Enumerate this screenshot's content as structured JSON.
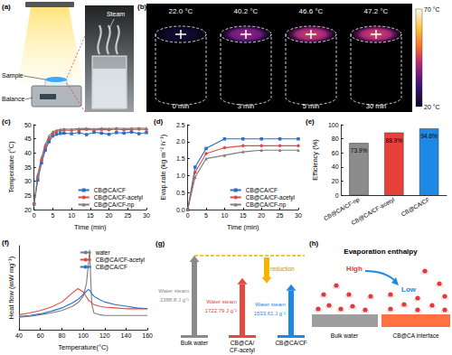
{
  "chart_data": [
    {
      "panel": "(c)",
      "type": "line",
      "x_label": "Time (min)",
      "y_label": "Temperature (°C)",
      "x": [
        0,
        1,
        2,
        3,
        4,
        5,
        6,
        7,
        8,
        10,
        12,
        14,
        16,
        18,
        20,
        22,
        24,
        26,
        28,
        30
      ],
      "series": [
        {
          "name": "CB@CA/CF",
          "color": "#2a6fc9",
          "marker": "rect",
          "values": [
            22.0,
            30.5,
            36.5,
            41.0,
            44.0,
            46.0,
            46.6,
            46.9,
            47.0,
            46.8,
            47.2,
            46.5,
            47.3,
            47.0,
            46.6,
            47.2,
            47.0,
            47.4,
            46.8,
            47.2
          ]
        },
        {
          "name": "CB@CA/CF-acetyl",
          "color": "#e5483d",
          "marker": "circle",
          "values": [
            22.0,
            31.5,
            37.5,
            42.0,
            45.0,
            46.8,
            47.6,
            47.9,
            48.1,
            48.0,
            48.2,
            48.3,
            48.1,
            48.3,
            48.2,
            48.4,
            48.2,
            48.3,
            48.4,
            48.3
          ]
        },
        {
          "name": "CB@CA/CF-np",
          "color": "#7d7d7d",
          "marker": "triangle",
          "values": [
            22.0,
            32.5,
            38.5,
            43.0,
            46.0,
            47.5,
            48.0,
            48.3,
            48.5,
            48.4,
            48.6,
            48.7,
            48.5,
            48.7,
            48.6,
            48.8,
            48.6,
            48.7,
            48.8,
            48.7
          ]
        }
      ],
      "xlim": [
        0,
        30
      ],
      "xticks": [
        0,
        5,
        10,
        15,
        20,
        25,
        30
      ],
      "ylim": [
        20,
        50
      ],
      "yticks": [
        20,
        25,
        30,
        35,
        40,
        45,
        50
      ],
      "grid": false,
      "legend": "lower right"
    },
    {
      "panel": "(d)",
      "type": "line",
      "x_label": "Time (min)",
      "y_label": "Evap.rate (kg m⁻² h⁻¹)",
      "x": [
        0,
        2,
        5,
        10,
        15,
        20,
        25,
        30
      ],
      "series": [
        {
          "name": "CB@CA/CF",
          "color": "#2a6fc9",
          "marker": "rect",
          "values": [
            0,
            1.25,
            1.8,
            2.08,
            2.08,
            2.08,
            2.08,
            2.08
          ]
        },
        {
          "name": "CB@CA/CF-acetyl",
          "color": "#e5483d",
          "marker": "circle",
          "values": [
            0,
            1.1,
            1.65,
            1.82,
            1.88,
            1.88,
            1.88,
            1.88
          ]
        },
        {
          "name": "CB@CA/CF-np",
          "color": "#7d7d7d",
          "marker": "triangle",
          "values": [
            0,
            0.95,
            1.5,
            1.6,
            1.7,
            1.75,
            1.75,
            1.75
          ]
        }
      ],
      "xlim": [
        0,
        30
      ],
      "xticks": [
        0,
        5,
        10,
        15,
        20,
        25,
        30
      ],
      "ylim": [
        0,
        2.5
      ],
      "yticks": [
        {
          "value": 0,
          "label": "0.0"
        },
        0.5,
        {
          "value": 1,
          "label": "1.0"
        },
        1.5,
        {
          "value": 2,
          "label": "2.0"
        },
        2.5
      ],
      "grid": false,
      "legend": "lower right"
    },
    {
      "panel": "(e)",
      "type": "bar",
      "y_label": "Efficiency (%)",
      "categories": [
        "CB@CA/CF-np",
        "CB@CA/CF-acetyl",
        "CB@CA/CF"
      ],
      "values": [
        73.9,
        88.9,
        94.6
      ],
      "value_labels": [
        "73.9%",
        "88.9%",
        "94.6%"
      ],
      "colors": [
        "#8c8c8c",
        "#e8413a",
        "#1e88e5"
      ],
      "ylim": [
        0,
        100
      ],
      "yticks": [
        0,
        20,
        40,
        60,
        80,
        100
      ],
      "grid": false,
      "data_labels": true
    },
    {
      "panel": "(f)",
      "type": "line",
      "x_label": "Temperature(°C)",
      "y_label": "Heat flow (mW mg⁻¹)",
      "x": [
        40,
        50,
        60,
        70,
        80,
        90,
        95,
        100,
        103,
        105,
        106,
        107,
        108,
        110,
        115,
        120,
        130,
        140,
        150,
        160
      ],
      "series": [
        {
          "name": "water",
          "color": "#7d7d7d",
          "marker": "none",
          "values": [
            1.5,
            1.6,
            1.8,
            2.0,
            2.3,
            2.8,
            3.2,
            4.0,
            5.5,
            8.0,
            9.5,
            6.0,
            3.0,
            2.0,
            1.8,
            1.7,
            1.7,
            1.7,
            1.7,
            1.7
          ]
        },
        {
          "name": "CB@CA/CF-acetyl",
          "color": "#e5483d",
          "marker": "none",
          "values": [
            1.8,
            2.0,
            2.3,
            2.7,
            3.3,
            4.4,
            4.9,
            4.5,
            3.9,
            3.5,
            3.4,
            3.3,
            3.2,
            3.0,
            2.8,
            2.7,
            2.6,
            2.5,
            2.5,
            2.5
          ]
        },
        {
          "name": "CB@CA/CF",
          "color": "#2a6fc9",
          "marker": "none",
          "values": [
            1.6,
            1.7,
            1.9,
            2.2,
            2.6,
            3.2,
            3.6,
            4.2,
            4.6,
            4.8,
            4.7,
            4.5,
            4.3,
            4.0,
            3.6,
            3.3,
            3.0,
            2.8,
            2.6,
            2.5
          ]
        }
      ],
      "xlim": [
        40,
        160
      ],
      "xticks": [
        40,
        60,
        80,
        100,
        120,
        140,
        160
      ],
      "ylim": [
        0,
        10
      ],
      "yticks": [],
      "grid": false,
      "legend": "upper right",
      "tick_labels": "x"
    }
  ],
  "figure": {
    "panel_a": {
      "panel": "(a)",
      "sample": "Sample",
      "balance": "Balance",
      "steam": "Steam"
    },
    "panel_b": {
      "panel": "(b)",
      "frames": [
        {
          "time": "0 min",
          "temperature": 22.0,
          "temperature_label": "22.0 °C"
        },
        {
          "time": "3 min",
          "temperature": 40.2,
          "temperature_label": "40.2 °C"
        },
        {
          "time": "5 min",
          "temperature": 46.6,
          "temperature_label": "46.6 °C"
        },
        {
          "time": "30 min",
          "temperature": 47.2,
          "temperature_label": "47.2 °C"
        }
      ],
      "colorbar": {
        "range": [
          20,
          70
        ],
        "ticks": [
          {
            "value": 70,
            "label": "70 °C"
          },
          {
            "value": 20,
            "label": "20 °C"
          }
        ]
      }
    },
    "panel_g": {
      "panel": "(g)",
      "levels": [
        {
          "name": [
            "Bulk water"
          ],
          "arrow_text": "Water steam",
          "enthalpy": 2388.8,
          "label": "2388.8 J g⁻¹",
          "color": "#8a8a8a"
        },
        {
          "name": [
            "CB@CA/",
            "CF-acetyl"
          ],
          "arrow_text": "Water steam",
          "enthalpy": 1722.79,
          "label": "1722.79 J g⁻¹",
          "color": "#e5483d"
        },
        {
          "name": [
            "CB@CA/CF"
          ],
          "arrow_text": "Water steam",
          "enthalpy": 1533.61,
          "label": "1533.61 J g⁻¹",
          "color": "#1e88e5"
        }
      ],
      "reduction": "reduction",
      "reduction_color": "#f5b400"
    },
    "panel_h": {
      "panel": "(h)",
      "title": "Evaporation enthalpy",
      "high": "High",
      "low": "Low",
      "left": "Bulk water",
      "right": "CB@CA interface"
    }
  }
}
